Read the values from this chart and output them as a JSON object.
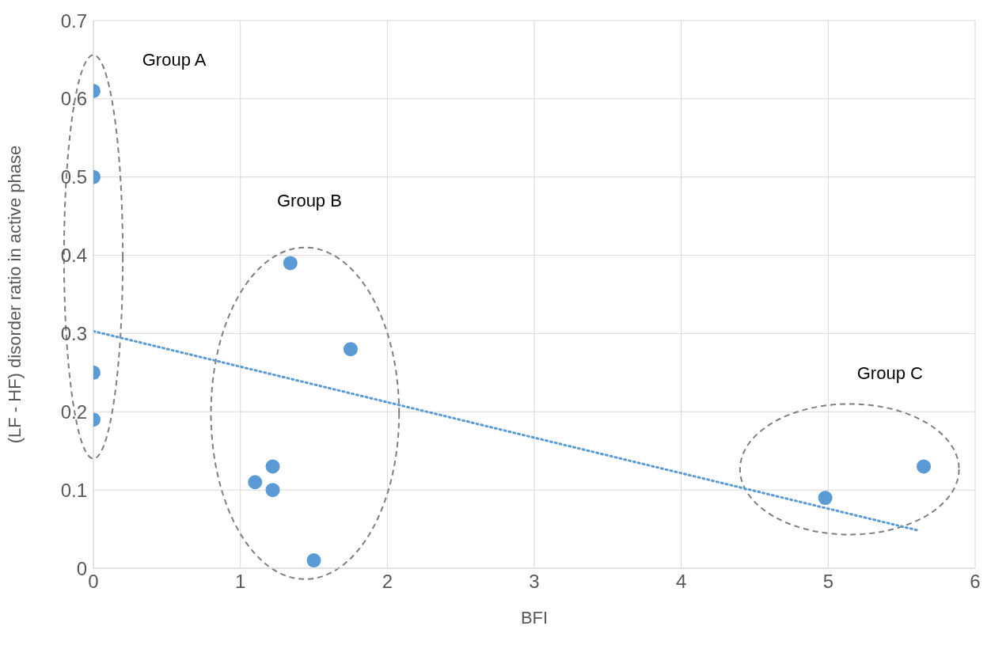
{
  "chart_data": {
    "type": "scatter",
    "xlabel": "BFI",
    "ylabel": "(LF - HF) disorder ratio in active phase",
    "xlim": [
      0,
      6
    ],
    "xticks": [
      0,
      1,
      2,
      3,
      4,
      5,
      6
    ],
    "ylim": [
      0,
      0.7
    ],
    "yticks": [
      0,
      0.1,
      0.2,
      0.3,
      0.4,
      0.5,
      0.6,
      0.7
    ],
    "grid": true,
    "series": [
      {
        "color": "#5b9bd5",
        "marker": "circle",
        "x": [
          0,
          0,
          0,
          0,
          1.34,
          1.75,
          1.22,
          1.1,
          1.22,
          1.5,
          4.98,
          5.65
        ],
        "values": [
          0.61,
          0.5,
          0.25,
          0.19,
          0.39,
          0.28,
          0.13,
          0.11,
          0.1,
          0.01,
          0.09,
          0.13
        ]
      },
      {
        "type": "line",
        "color": "#5b9bd5",
        "marker": "none",
        "line_style": "dotted",
        "x": [
          0,
          5.62
        ],
        "values": [
          0.303,
          0.048
        ]
      }
    ],
    "annotations": [
      "Group A",
      "Group B",
      "Group C"
    ]
  }
}
